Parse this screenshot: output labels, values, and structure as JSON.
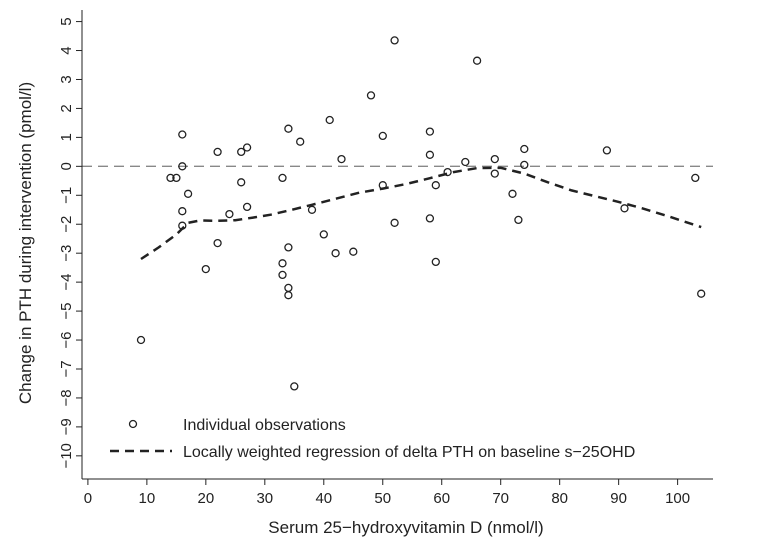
{
  "chart_data": {
    "type": "scatter",
    "xlabel": "Serum 25−hydroxyvitamin D (nmol/l)",
    "ylabel": "Change in PTH during intervention (pmol/l)",
    "xlim": [
      -1,
      106
    ],
    "ylim": [
      -10.8,
      5.4
    ],
    "x_ticks": [
      0,
      10,
      20,
      30,
      40,
      50,
      60,
      70,
      80,
      90,
      100
    ],
    "y_ticks": [
      5,
      4,
      3,
      2,
      1,
      0,
      -1,
      -2,
      -3,
      -4,
      -5,
      -6,
      -7,
      -8,
      -9,
      -10
    ],
    "x_tick_labels": [
      "0",
      "10",
      "20",
      "30",
      "40",
      "50",
      "60",
      "70",
      "80",
      "90",
      "100"
    ],
    "y_tick_labels": [
      "5",
      "4",
      "3",
      "2",
      "1",
      "0",
      "−1",
      "−2",
      "−3",
      "−4",
      "−5",
      "−6",
      "−7",
      "−8",
      "−9",
      "−10"
    ],
    "reference_line_y": 0,
    "legend_position": "bottom-left",
    "series": [
      {
        "name": "Individual observations",
        "marker": "hollow-circle",
        "color": "#222222",
        "points": [
          [
            9,
            -6.0
          ],
          [
            14,
            -0.4
          ],
          [
            15,
            -0.4
          ],
          [
            16,
            1.1
          ],
          [
            16,
            0.0
          ],
          [
            16,
            -1.55
          ],
          [
            16,
            -2.05
          ],
          [
            17,
            -0.95
          ],
          [
            20,
            -3.55
          ],
          [
            22,
            0.5
          ],
          [
            22,
            -2.65
          ],
          [
            24,
            -1.65
          ],
          [
            26,
            0.5
          ],
          [
            26,
            -0.55
          ],
          [
            27,
            0.65
          ],
          [
            27,
            -1.4
          ],
          [
            33,
            -0.4
          ],
          [
            33,
            -3.35
          ],
          [
            33,
            -3.75
          ],
          [
            34,
            1.3
          ],
          [
            34,
            -2.8
          ],
          [
            34,
            -4.2
          ],
          [
            34,
            -4.45
          ],
          [
            35,
            -7.6
          ],
          [
            36,
            0.85
          ],
          [
            38,
            -1.5
          ],
          [
            40,
            -2.35
          ],
          [
            41,
            1.6
          ],
          [
            42,
            -3.0
          ],
          [
            43,
            0.25
          ],
          [
            45,
            -2.95
          ],
          [
            48,
            2.45
          ],
          [
            50,
            1.05
          ],
          [
            50,
            -0.65
          ],
          [
            52,
            4.35
          ],
          [
            52,
            -1.95
          ],
          [
            58,
            1.2
          ],
          [
            58,
            0.4
          ],
          [
            58,
            -1.8
          ],
          [
            59,
            -0.65
          ],
          [
            59,
            -3.3
          ],
          [
            61,
            -0.2
          ],
          [
            64,
            0.15
          ],
          [
            66,
            3.65
          ],
          [
            69,
            0.25
          ],
          [
            69,
            -0.25
          ],
          [
            72,
            -0.95
          ],
          [
            73,
            -1.85
          ],
          [
            74,
            0.6
          ],
          [
            74,
            0.05
          ],
          [
            88,
            0.55
          ],
          [
            91,
            -1.45
          ],
          [
            103,
            -0.4
          ],
          [
            104,
            -4.4
          ]
        ]
      },
      {
        "name": "Locally weighted regression of delta PTH on baseline s−25OHD",
        "style": "dashed",
        "color": "#222222",
        "points": [
          [
            9,
            -3.2
          ],
          [
            12,
            -2.8
          ],
          [
            15,
            -2.35
          ],
          [
            17,
            -1.95
          ],
          [
            19,
            -1.87
          ],
          [
            22,
            -1.88
          ],
          [
            25,
            -1.86
          ],
          [
            28,
            -1.77
          ],
          [
            31,
            -1.67
          ],
          [
            34,
            -1.53
          ],
          [
            38,
            -1.33
          ],
          [
            42,
            -1.12
          ],
          [
            46,
            -0.91
          ],
          [
            50,
            -0.77
          ],
          [
            54,
            -0.61
          ],
          [
            58,
            -0.41
          ],
          [
            62,
            -0.2
          ],
          [
            66,
            -0.06
          ],
          [
            70,
            -0.05
          ],
          [
            74,
            -0.25
          ],
          [
            78,
            -0.55
          ],
          [
            82,
            -0.83
          ],
          [
            86,
            -1.03
          ],
          [
            90,
            -1.23
          ],
          [
            94,
            -1.45
          ],
          [
            98,
            -1.7
          ],
          [
            104,
            -2.1
          ]
        ]
      }
    ]
  }
}
